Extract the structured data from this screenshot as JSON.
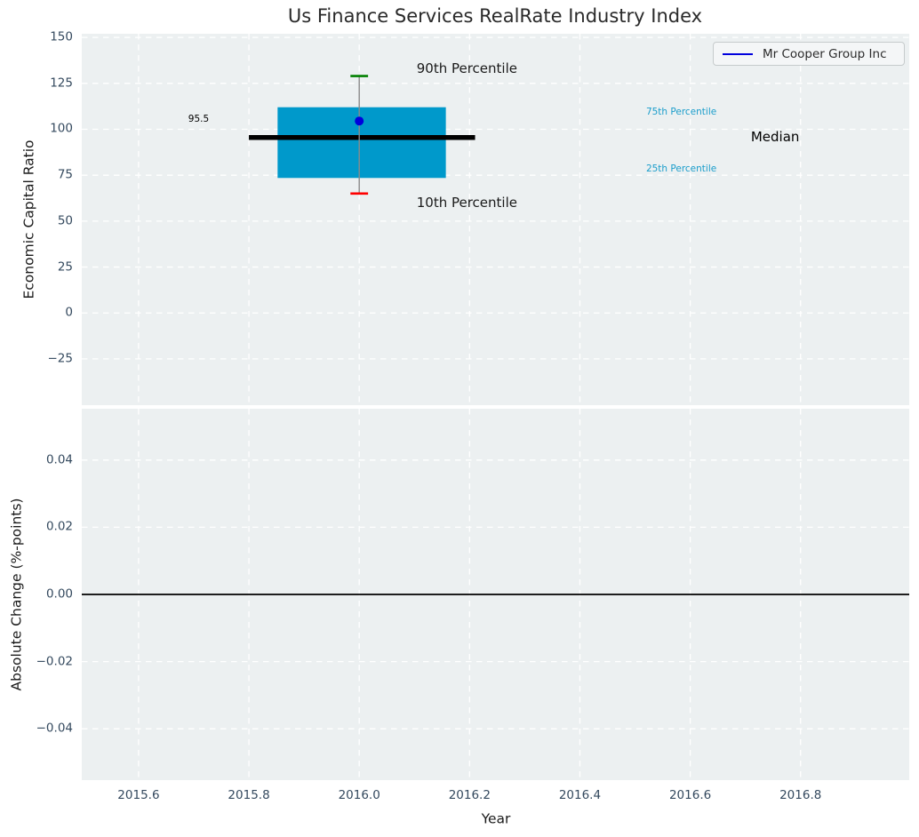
{
  "title": "Us Finance Services RealRate Industry Index",
  "legend": {
    "label": "Mr Cooper Group Inc",
    "line_color": "#0000dd"
  },
  "colors": {
    "axes_background": "#ecf0f1",
    "grid": "#ffffff",
    "tick_label": "#34495e",
    "box_fill": "#0099cb",
    "median_line": "#000000",
    "p90_cap": "#008000",
    "p10_cap": "#ff0000",
    "whisker": "#8a8a8a",
    "company_marker": "#0000dd",
    "percentile_text": "#1a9dcb",
    "zero_line": "#000000"
  },
  "chart_data": [
    {
      "type": "boxplot",
      "title": "Us Finance Services RealRate Industry Index",
      "ylabel": "Economic Capital Ratio",
      "xlabel": "Year",
      "xlim": [
        2015.497,
        2016.997
      ],
      "ylim": [
        -50.2,
        152.0
      ],
      "grid": "white dashed, on",
      "legend_position": "upper right",
      "yticks": [
        {
          "v": 150,
          "label": "150"
        },
        {
          "v": 125,
          "label": "125"
        },
        {
          "v": 100,
          "label": "100"
        },
        {
          "v": 75,
          "label": "75"
        },
        {
          "v": 50,
          "label": "50"
        },
        {
          "v": 25,
          "label": "25"
        },
        {
          "v": 0,
          "label": "0"
        },
        {
          "v": -25,
          "label": "−25"
        }
      ],
      "xticks": [
        {
          "v": 2015.6,
          "label": "2015.6"
        },
        {
          "v": 2015.8,
          "label": "2015.8"
        },
        {
          "v": 2016.0,
          "label": "2016.0"
        },
        {
          "v": 2016.2,
          "label": "2016.2"
        },
        {
          "v": 2016.4,
          "label": "2016.4"
        },
        {
          "v": 2016.6,
          "label": "2016.6"
        },
        {
          "v": 2016.8,
          "label": "2016.8"
        }
      ],
      "box": {
        "year": 2016.0,
        "x_center": 2016.0,
        "box_x_range": [
          2015.852,
          2016.157
        ],
        "median_x_range": [
          2015.8,
          2016.21
        ],
        "p10": 65,
        "p25": 73.5,
        "median": 95.5,
        "p75": 112,
        "p90": 129,
        "median_label": "95.5",
        "whisker_cap_halfwidth": 0.016
      },
      "series": [
        {
          "name": "Mr Cooper Group Inc",
          "x": 2016.0,
          "value": 104.5,
          "marker": "dot"
        }
      ],
      "annotations": [
        {
          "text": "90th Percentile",
          "x": 2016.104,
          "y": 133,
          "size": 15,
          "color": "#1a1a1a"
        },
        {
          "text": "10th Percentile",
          "x": 2016.104,
          "y": 60,
          "size": 15,
          "color": "#1a1a1a"
        },
        {
          "text": "Median",
          "x": 2016.71,
          "y": 96,
          "size": 15,
          "color": "#000000"
        },
        {
          "text": "75th Percentile",
          "x": 2016.52,
          "y": 109,
          "size": 10.5,
          "color": "#1a9dcb"
        },
        {
          "text": "25th Percentile",
          "x": 2016.52,
          "y": 78,
          "size": 10.5,
          "color": "#1a9dcb"
        },
        {
          "text": "95.5",
          "x": 2015.69,
          "y": 105,
          "size": 10.5,
          "color": "#000000"
        }
      ]
    },
    {
      "type": "line",
      "ylabel": "Absolute Change (%-points)",
      "xlabel": "Year",
      "xlim": [
        2015.497,
        2016.997
      ],
      "ylim": [
        -0.0553,
        0.0553
      ],
      "grid": "white dashed, on",
      "yticks": [
        {
          "v": 0.04,
          "label": "0.04"
        },
        {
          "v": 0.02,
          "label": "0.02"
        },
        {
          "v": 0.0,
          "label": "0.00"
        },
        {
          "v": -0.02,
          "label": "−0.02"
        },
        {
          "v": -0.04,
          "label": "−0.04"
        }
      ],
      "xticks": [
        {
          "v": 2015.6,
          "label": "2015.6"
        },
        {
          "v": 2015.8,
          "label": "2015.8"
        },
        {
          "v": 2016.0,
          "label": "2016.0"
        },
        {
          "v": 2016.2,
          "label": "2016.2"
        },
        {
          "v": 2016.4,
          "label": "2016.4"
        },
        {
          "v": 2016.6,
          "label": "2016.6"
        },
        {
          "v": 2016.8,
          "label": "2016.8"
        }
      ],
      "zero_line": 0.0,
      "series": []
    }
  ]
}
